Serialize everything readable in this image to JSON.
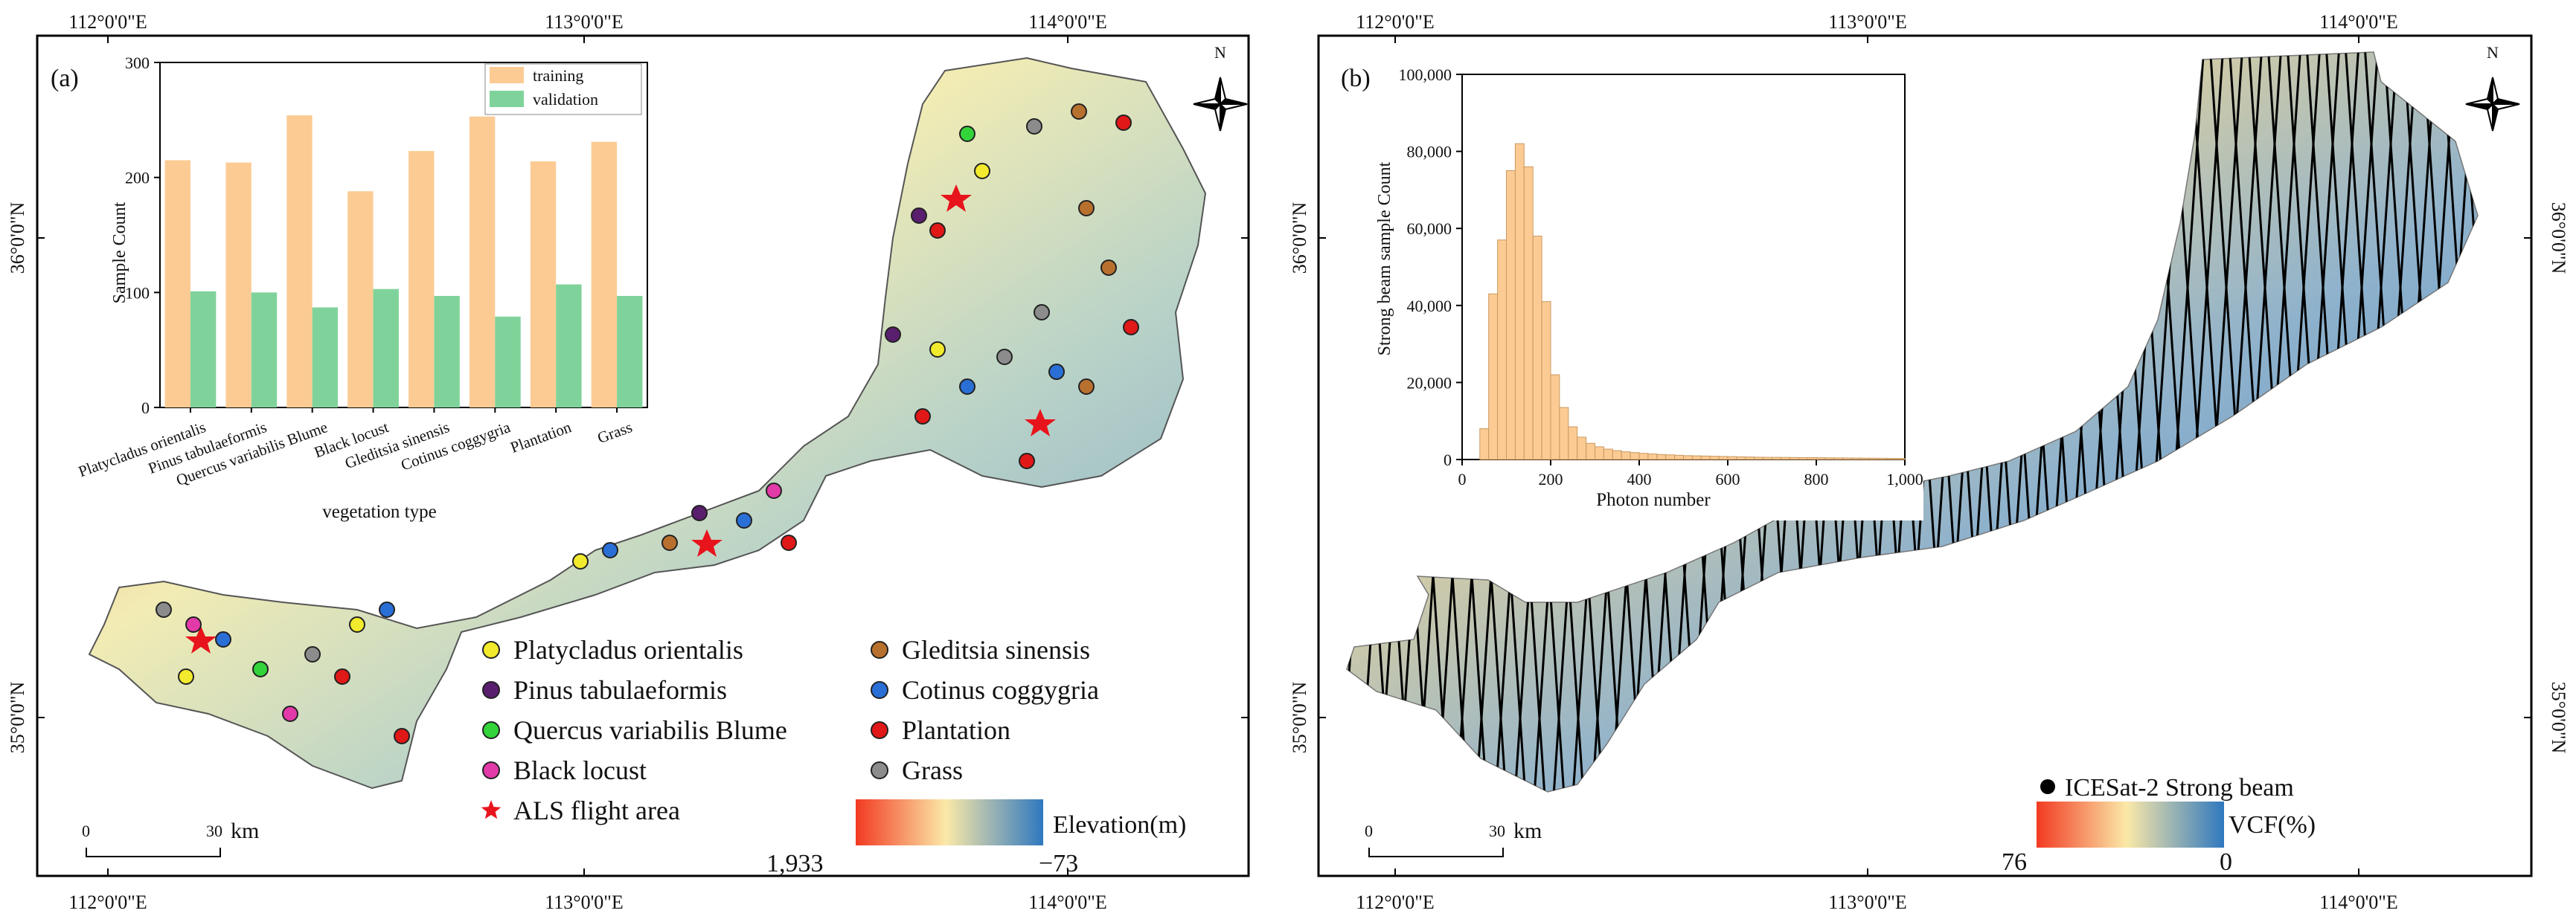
{
  "panel_a": {
    "label": "(a)",
    "top_lon_labels": [
      "112°0'0\"E",
      "113°0'0\"E",
      "114°0'0\"E"
    ],
    "bottom_lon_labels": [
      "112°0'0\"E",
      "113°0'0\"E",
      "114°0'0\"E"
    ],
    "lat_labels": [
      "36°0'0\"N",
      "35°0'0\"N"
    ],
    "north_label": "N",
    "scale": {
      "zero": "0",
      "dist": "30",
      "unit": "km"
    },
    "legend": {
      "left": [
        {
          "label": "Platycladus orientalis",
          "color": "#f2ea2c",
          "shape": "circle"
        },
        {
          "label": "Pinus tabulaeformis",
          "color": "#5a1e6e",
          "shape": "circle"
        },
        {
          "label": "Quercus variabilis Blume",
          "color": "#33d43a",
          "shape": "circle"
        },
        {
          "label": "Black locust",
          "color": "#e23aa8",
          "shape": "circle"
        },
        {
          "label": "ALS flight area",
          "color": "#e8141c",
          "shape": "star"
        }
      ],
      "right": [
        {
          "label": "Gleditsia sinensis",
          "color": "#b8702e",
          "shape": "circle"
        },
        {
          "label": "Cotinus coggygria",
          "color": "#2a6fd6",
          "shape": "circle"
        },
        {
          "label": "Plantation",
          "color": "#e01818",
          "shape": "circle"
        },
        {
          "label": "Grass",
          "color": "#8c8c8c",
          "shape": "circle"
        }
      ]
    },
    "colorbar": {
      "title": "Elevation(m)",
      "max_label": "1,933",
      "min_label": "−73",
      "colors": [
        "#f23a22",
        "#fbe9a8",
        "#2f78bf"
      ]
    }
  },
  "panel_b": {
    "label": "(b)",
    "top_lon_labels": [
      "112°0'0\"E",
      "113°0'0\"E",
      "114°0'0\"E"
    ],
    "bottom_lon_labels": [
      "112°0'0\"E",
      "113°0'0\"E",
      "114°0'0\"E"
    ],
    "lat_labels": [
      "36°0'0\"N",
      "35°0'0\"N"
    ],
    "north_label": "N",
    "scale": {
      "zero": "0",
      "dist": "30",
      "unit": "km"
    },
    "beam_legend": "ICESat-2 Strong beam",
    "colorbar": {
      "title": "VCF(%)",
      "max_label": "76",
      "min_label": "0",
      "colors": [
        "#f23a22",
        "#fbe9a8",
        "#2f78bf"
      ]
    }
  },
  "chart_data": [
    {
      "type": "bar",
      "title": "",
      "xlabel": "vegetation type",
      "ylabel": "Sample Count",
      "ylim": [
        0,
        300
      ],
      "yticks": [
        "0",
        "100",
        "200",
        "300"
      ],
      "categories": [
        "Platycladus orientalis",
        "Pinus tabulaeformis",
        "Quercus variabilis Blume",
        "Black locust",
        "Gleditsia sinensis",
        "Cotinus coggygria",
        "Plantation",
        "Grass"
      ],
      "series": [
        {
          "name": "training",
          "color": "#fccb94",
          "values": [
            215,
            213,
            254,
            188,
            223,
            253,
            214,
            231
          ]
        },
        {
          "name": "validation",
          "color": "#7fd39a",
          "values": [
            101,
            100,
            87,
            103,
            97,
            79,
            107,
            97
          ]
        }
      ]
    },
    {
      "type": "bar",
      "title": "",
      "xlabel": "Photon number",
      "ylabel": "Strong beam sample Count",
      "xlim": [
        0,
        1000
      ],
      "ylim": [
        0,
        100000
      ],
      "xticks": [
        "0",
        "200",
        "400",
        "600",
        "800",
        "1,000"
      ],
      "yticks": [
        "0",
        "20,000",
        "40,000",
        "60,000",
        "80,000",
        "100,000"
      ],
      "bin_width": 20,
      "bin_starts": [
        40,
        60,
        80,
        100,
        120,
        140,
        160,
        180,
        200,
        220,
        240,
        260,
        280,
        300,
        320,
        340,
        360,
        380,
        400,
        420,
        440,
        460,
        480,
        500,
        520,
        540,
        560,
        580,
        600,
        620,
        640,
        660,
        680,
        700,
        720,
        740,
        760,
        780,
        800,
        820,
        840,
        860,
        880,
        900,
        920,
        940,
        960,
        980
      ],
      "values": [
        8000,
        43000,
        57000,
        75000,
        82000,
        76000,
        58000,
        41000,
        22000,
        13500,
        8500,
        5800,
        4200,
        3300,
        2700,
        2300,
        2000,
        1800,
        1600,
        1450,
        1300,
        1200,
        1100,
        1000,
        950,
        900,
        850,
        800,
        750,
        700,
        650,
        600,
        580,
        560,
        540,
        520,
        500,
        480,
        460,
        440,
        420,
        400,
        380,
        360,
        340,
        320,
        300,
        280
      ],
      "color": "#fccb94"
    }
  ]
}
